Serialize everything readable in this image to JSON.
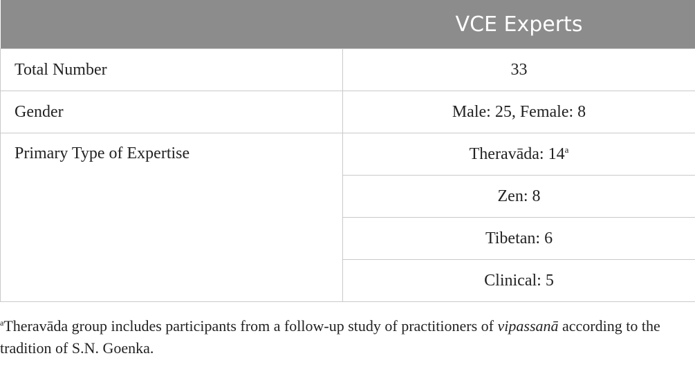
{
  "table": {
    "header": "VCE Experts",
    "rows": [
      {
        "label": "Total Number",
        "values": [
          "33"
        ]
      },
      {
        "label": "Gender",
        "values": [
          "Male: 25, Female: 8"
        ]
      },
      {
        "label": "Primary Type of Expertise",
        "values": [
          {
            "text": "Theravāda: 14",
            "note": "a"
          },
          "Zen: 8",
          "Tibetan: 6",
          "Clinical: 5"
        ]
      }
    ]
  },
  "footnote": {
    "marker": "a",
    "text": "Theravāda group includes participants from a follow-up study of practitioners of ",
    "emphasis": "vipassanā",
    "text_end": " according to the tradition of S.N. Goenka."
  }
}
